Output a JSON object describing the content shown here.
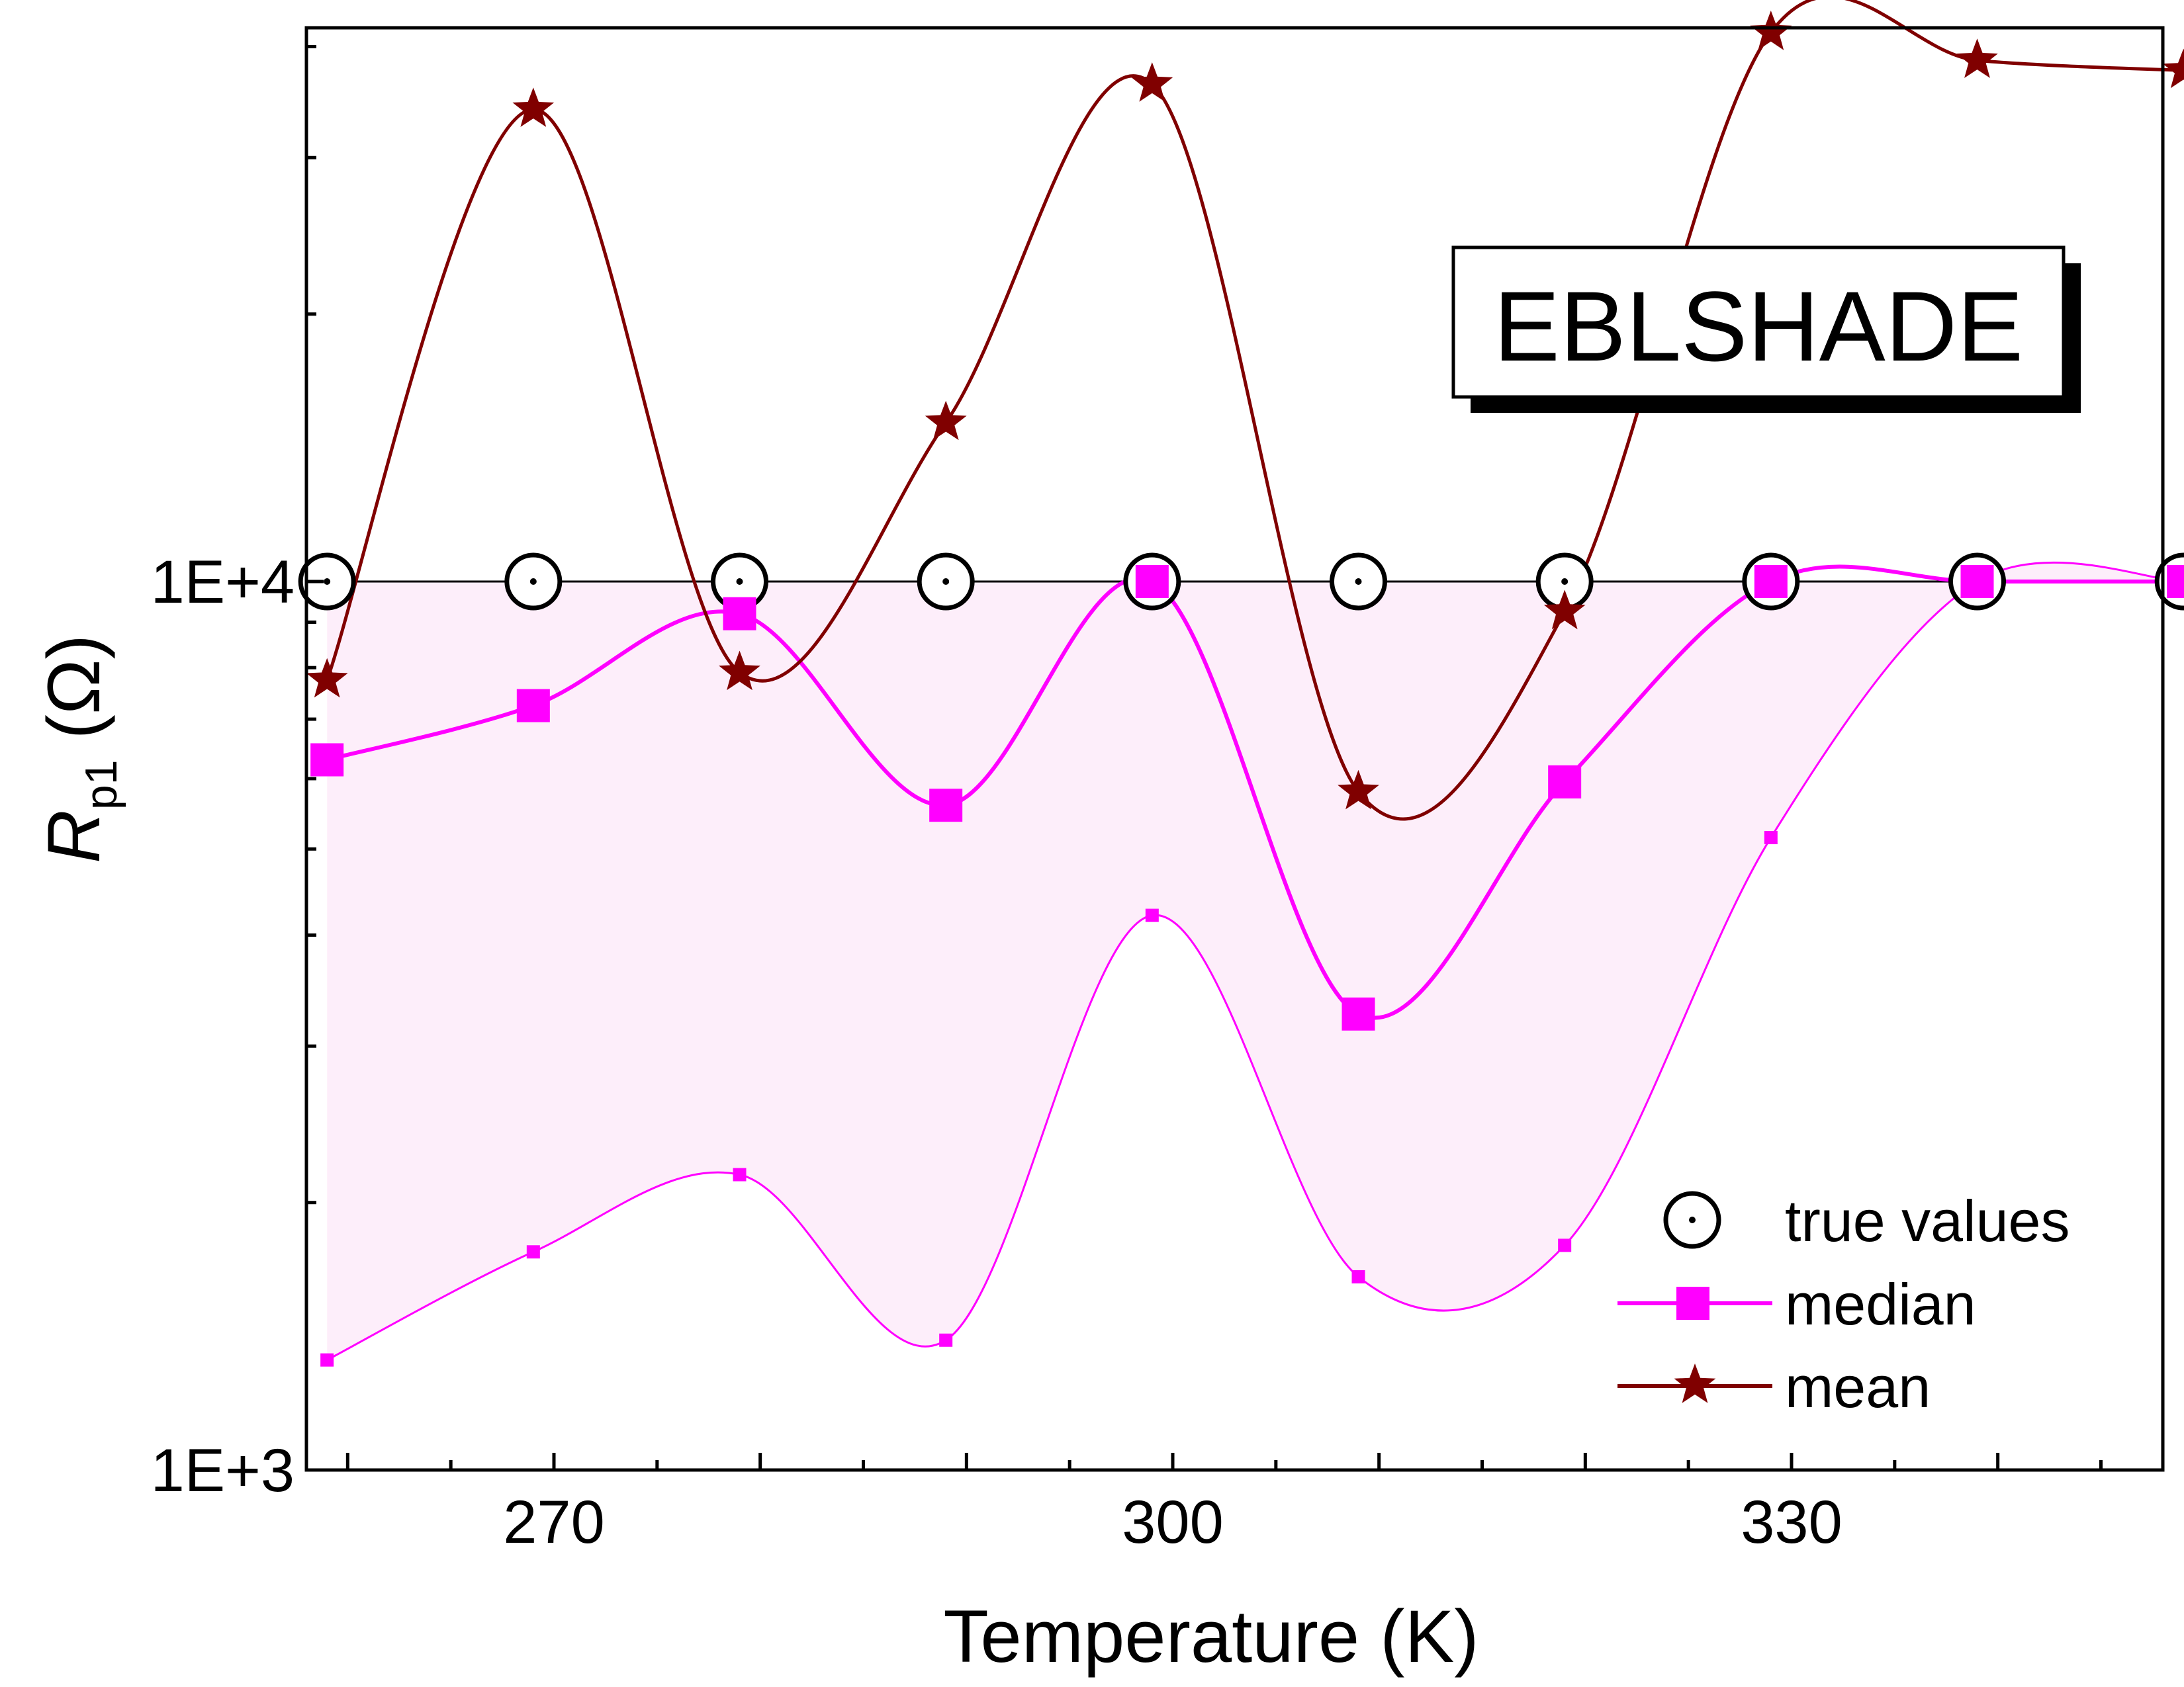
{
  "chart_data": {
    "type": "line",
    "annotation": "EBLSHADE",
    "xlabel": "Temperature (K)",
    "ylabel": {
      "symbol": "R",
      "subscript": "p1",
      "unit": "(Ω)"
    },
    "yscale": "log",
    "xlim": [
      258,
      348
    ],
    "ylim": [
      1000,
      42000
    ],
    "x_ticks": [
      270,
      300,
      330
    ],
    "y_ticks": [
      {
        "value": 1000,
        "label": "1E+3"
      },
      {
        "value": 10000,
        "label": "1E+4"
      }
    ],
    "x": [
      259,
      269,
      279,
      289,
      299,
      309,
      319,
      329,
      339,
      349
    ],
    "series": [
      {
        "name": "true values",
        "marker": "circle-dot",
        "color": "#000000",
        "values": [
          10000,
          10000,
          10000,
          10000,
          10000,
          10000,
          10000,
          10000,
          10000,
          10000
        ]
      },
      {
        "name": "median",
        "marker": "square",
        "color": "#ff00ff",
        "values": [
          6300,
          7250,
          9200,
          5600,
          10000,
          3260,
          5950,
          10000,
          10000,
          10000
        ]
      },
      {
        "name": "mean",
        "marker": "star",
        "color": "#800000",
        "values": [
          7750,
          34000,
          7900,
          15100,
          36300,
          5800,
          9250,
          41500,
          38600,
          37600
        ]
      },
      {
        "name": "",
        "marker": "small-square",
        "color": "#ff00ff",
        "values": [
          1330,
          1760,
          2150,
          1400,
          4210,
          1650,
          1790,
          5150,
          10000,
          10000
        ]
      }
    ],
    "band": {
      "lower_series": 3,
      "upper_series": 0,
      "fill": "#fdeefa"
    },
    "legend": {
      "placement": "bottom-right",
      "entries": [
        "true values",
        "median",
        "mean"
      ]
    }
  }
}
